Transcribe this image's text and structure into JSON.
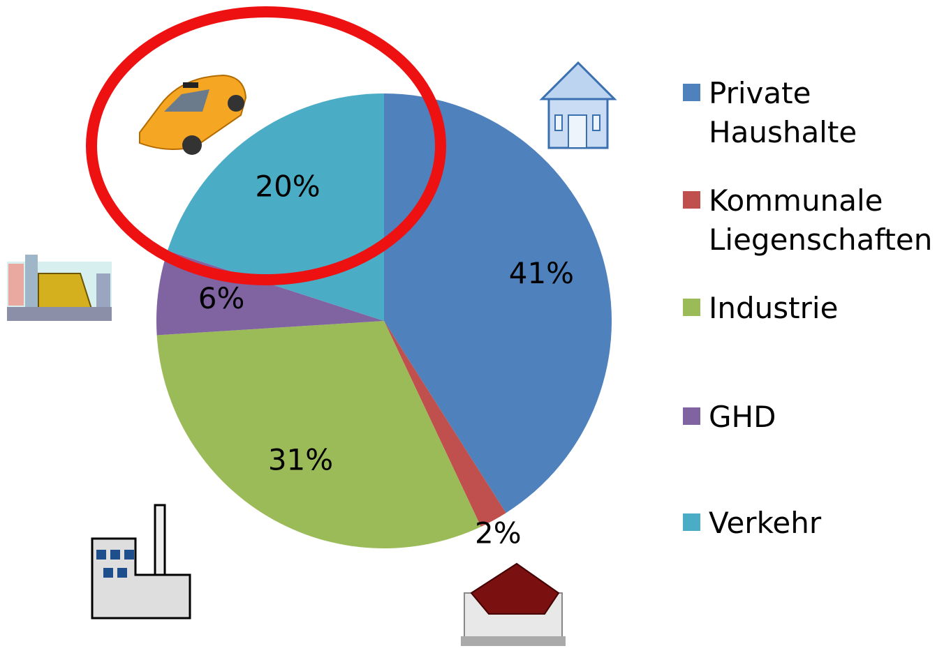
{
  "chart_data": {
    "type": "pie",
    "categories": [
      "Private Haushalte",
      "Kommunale Liegenschaften",
      "Industrie",
      "GHD",
      "Verkehr"
    ],
    "values": [
      41,
      2,
      31,
      6,
      20
    ],
    "value_labels": [
      "41%",
      "2%",
      "31%",
      "6%",
      "20%"
    ],
    "colors": [
      "#4f81bd",
      "#c0504d",
      "#9bbb59",
      "#8064a2",
      "#4bacc6"
    ],
    "legend": "right"
  }
}
